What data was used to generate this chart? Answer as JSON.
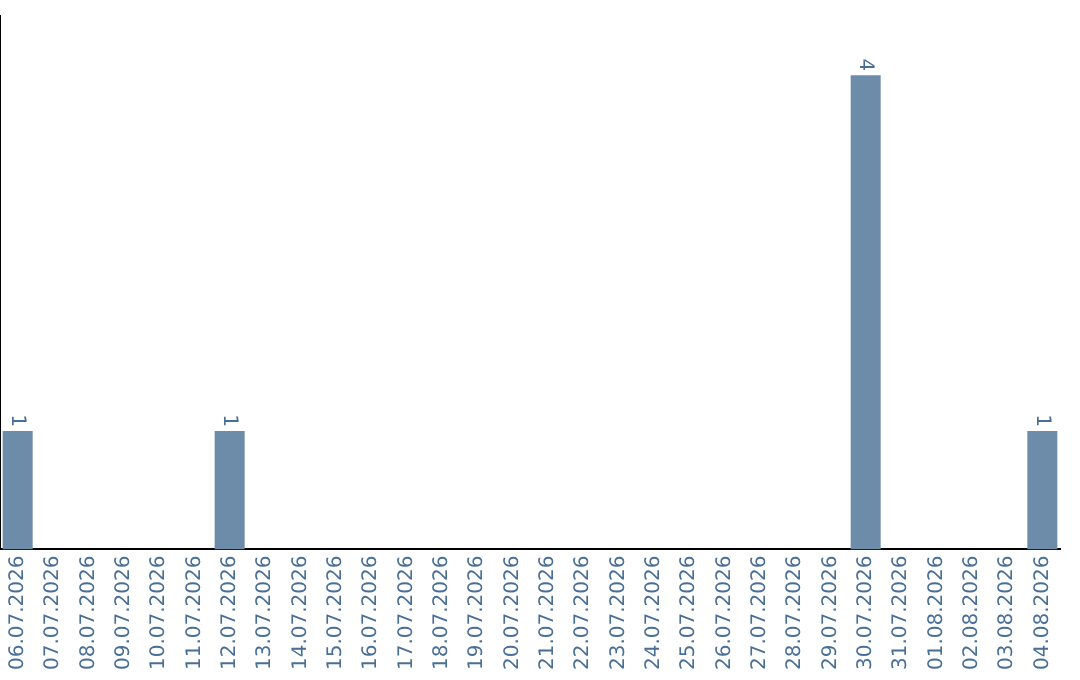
{
  "chart_data": {
    "type": "bar",
    "categories": [
      "06.07.2026",
      "07.07.2026",
      "08.07.2026",
      "09.07.2026",
      "10.07.2026",
      "11.07.2026",
      "12.07.2026",
      "13.07.2026",
      "14.07.2026",
      "15.07.2026",
      "16.07.2026",
      "17.07.2026",
      "18.07.2026",
      "19.07.2026",
      "20.07.2026",
      "21.07.2026",
      "22.07.2026",
      "23.07.2026",
      "24.07.2026",
      "25.07.2026",
      "26.07.2026",
      "27.07.2026",
      "28.07.2026",
      "29.07.2026",
      "30.07.2026",
      "31.07.2026",
      "01.08.2026",
      "02.08.2026",
      "03.08.2026",
      "04.08.2026"
    ],
    "values": [
      1,
      0,
      0,
      0,
      0,
      0,
      1,
      0,
      0,
      0,
      0,
      0,
      0,
      0,
      0,
      0,
      0,
      0,
      0,
      0,
      0,
      0,
      0,
      0,
      4,
      0,
      0,
      0,
      0,
      1
    ],
    "value_labels": [
      "1",
      null,
      null,
      null,
      null,
      null,
      "1",
      null,
      null,
      null,
      null,
      null,
      null,
      null,
      null,
      null,
      null,
      null,
      null,
      null,
      null,
      null,
      null,
      null,
      "4",
      null,
      null,
      null,
      null,
      "1"
    ],
    "color": "#6d8caa",
    "grid": false,
    "legend": false,
    "tick_labels": "x"
  }
}
